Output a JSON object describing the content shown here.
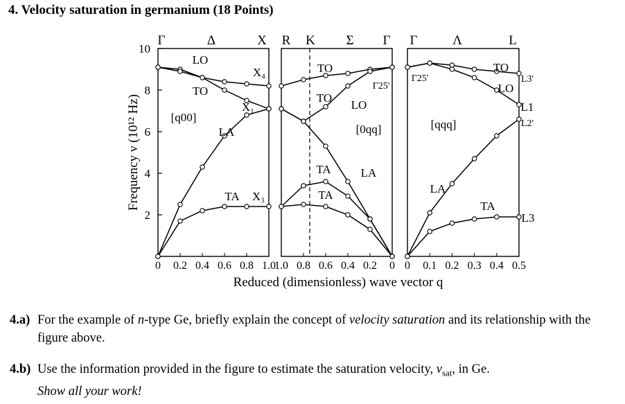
{
  "problem": {
    "title": "4. Velocity saturation in germanium (18 Points)"
  },
  "figure": {
    "ylabel": "Frequency ν (10¹² Hz)",
    "xlabel": "Reduced (dimensionless) wave vector q",
    "y_ticks": [
      "10",
      "8",
      "6",
      "4",
      "2"
    ],
    "panels": [
      {
        "direction": "[q00]",
        "top_labels": [
          "Γ",
          "Δ",
          "X"
        ],
        "x_ticks": [
          "0",
          "0.2",
          "0.4",
          "0.6",
          "0.8",
          "1.0"
        ],
        "branch_labels": [
          "LO",
          "TO",
          "X₄",
          "X₁",
          "LA",
          "TA",
          "X₃"
        ]
      },
      {
        "direction": "[0qq]",
        "top_labels": [
          "R",
          "K",
          "Σ",
          "Γ"
        ],
        "x_ticks": [
          "1.0",
          "0.8",
          "0.6",
          "0.4",
          "0.2",
          "0"
        ],
        "branch_labels": [
          "TO",
          "TO",
          "LO",
          "Γ25'",
          "TA",
          "TA",
          "LA"
        ]
      },
      {
        "direction": "[qqq]",
        "top_labels": [
          "Γ",
          "Λ",
          "L"
        ],
        "x_ticks": [
          "0",
          "0.1",
          "0.2",
          "0.3",
          "0.4",
          "0.5"
        ],
        "branch_labels": [
          "Γ25'",
          "TO",
          "LO",
          "L3'",
          "L1",
          "L2'",
          "LA",
          "TA",
          "L3"
        ]
      }
    ]
  },
  "chart_data": {
    "type": "scatter",
    "title": "",
    "ylabel": "Frequency ν (10¹² Hz)",
    "xlabel": "Reduced (dimensionless) wave vector q",
    "ylim": [
      0,
      10
    ],
    "panels": [
      {
        "direction": "[q00]",
        "xlim": [
          0,
          1.0
        ],
        "series": [
          {
            "name": "LO",
            "x": [
              0,
              0.2,
              0.4,
              0.6,
              0.8,
              1.0
            ],
            "y": [
              9.1,
              9.0,
              8.6,
              8.0,
              7.5,
              7.1
            ]
          },
          {
            "name": "TO",
            "x": [
              0,
              0.2,
              0.4,
              0.6,
              0.8,
              1.0
            ],
            "y": [
              9.1,
              8.9,
              8.6,
              8.4,
              8.3,
              8.2
            ]
          },
          {
            "name": "LA",
            "x": [
              0,
              0.2,
              0.4,
              0.6,
              0.8,
              1.0
            ],
            "y": [
              0,
              2.5,
              4.3,
              5.8,
              6.8,
              7.1
            ]
          },
          {
            "name": "TA",
            "x": [
              0,
              0.2,
              0.4,
              0.6,
              0.8,
              1.0
            ],
            "y": [
              0,
              1.7,
              2.2,
              2.4,
              2.4,
              2.4
            ]
          }
        ]
      },
      {
        "direction": "[0qq]",
        "xlim": [
          1.0,
          0
        ],
        "series": [
          {
            "name": "TO",
            "x": [
              1.0,
              0.8,
              0.6,
              0.4,
              0.2,
              0
            ],
            "y": [
              8.2,
              8.5,
              8.7,
              8.8,
              9.0,
              9.1
            ]
          },
          {
            "name": "LO",
            "x": [
              1.0,
              0.8,
              0.6,
              0.4,
              0.2,
              0
            ],
            "y": [
              7.1,
              6.5,
              7.2,
              8.2,
              8.9,
              9.1
            ]
          },
          {
            "name": "LA",
            "x": [
              1.0,
              0.8,
              0.6,
              0.4,
              0.2,
              0
            ],
            "y": [
              7.1,
              6.5,
              5.3,
              3.6,
              1.8,
              0
            ]
          },
          {
            "name": "TA",
            "x": [
              1.0,
              0.8,
              0.6,
              0.4,
              0.2,
              0
            ],
            "y": [
              2.4,
              2.5,
              2.4,
              2.0,
              1.3,
              0
            ]
          },
          {
            "name": "TA",
            "x": [
              1.0,
              0.8,
              0.6,
              0.4,
              0.2,
              0
            ],
            "y": [
              2.4,
              3.4,
              3.6,
              2.9,
              1.8,
              0
            ]
          }
        ]
      },
      {
        "direction": "[qqq]",
        "xlim": [
          0,
          0.5
        ],
        "series": [
          {
            "name": "TO",
            "x": [
              0,
              0.1,
              0.2,
              0.3,
              0.4,
              0.5
            ],
            "y": [
              9.1,
              9.3,
              9.2,
              9.0,
              8.9,
              8.8
            ]
          },
          {
            "name": "LO",
            "x": [
              0,
              0.1,
              0.2,
              0.3,
              0.4,
              0.5
            ],
            "y": [
              9.1,
              9.3,
              9.0,
              8.6,
              8.0,
              7.3
            ]
          },
          {
            "name": "LA",
            "x": [
              0,
              0.1,
              0.2,
              0.3,
              0.4,
              0.5
            ],
            "y": [
              0,
              2.1,
              3.5,
              4.7,
              5.8,
              6.6
            ]
          },
          {
            "name": "TA",
            "x": [
              0,
              0.1,
              0.2,
              0.3,
              0.4,
              0.5
            ],
            "y": [
              0,
              1.2,
              1.6,
              1.8,
              1.9,
              1.9
            ]
          }
        ]
      }
    ]
  },
  "questions": [
    {
      "number": "4.a)",
      "parts": [
        "For the example of ",
        "n",
        "-type Ge, briefly explain the concept of ",
        "velocity saturation",
        " and its relationship with the figure above."
      ]
    },
    {
      "number": "4.b)",
      "parts": [
        "Use the information provided in the figure to estimate the saturation velocity, ",
        "v",
        "sat",
        ", in Ge. ",
        "Show all your work!"
      ]
    }
  ]
}
